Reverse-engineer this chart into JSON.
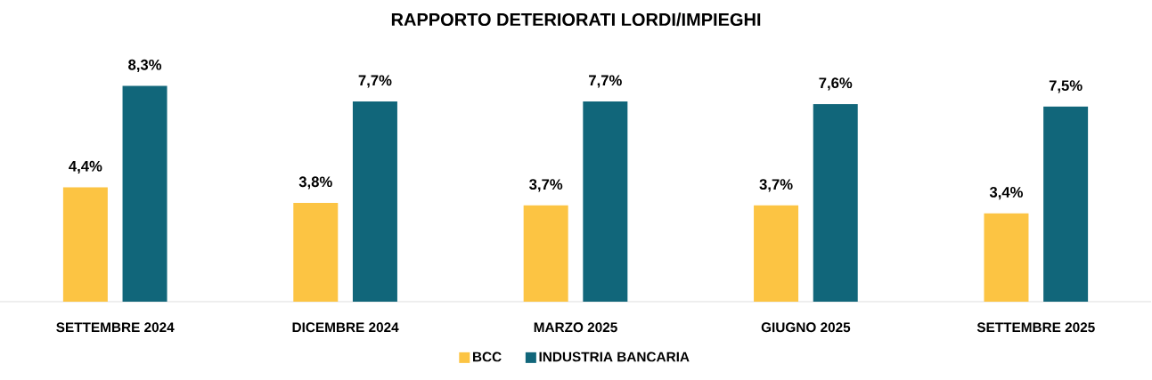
{
  "chart_data": {
    "type": "bar",
    "title": "RAPPORTO DETERIORATI LORDI/IMPIEGHI",
    "categories": [
      "SETTEMBRE 2024",
      "DICEMBRE 2024",
      "MARZO 2025",
      "GIUGNO 2025",
      "SETTEMBRE 2025"
    ],
    "series": [
      {
        "name": "BCC",
        "color": "#fcc443",
        "values": [
          4.4,
          3.8,
          3.7,
          3.7,
          3.4
        ],
        "value_labels": [
          "4,4%",
          "3,8%",
          "3,7%",
          "3,7%",
          "3,4%"
        ]
      },
      {
        "name": "INDUSTRIA BANCARIA",
        "color": "#11667a",
        "values": [
          8.3,
          7.7,
          7.7,
          7.6,
          7.5
        ],
        "value_labels": [
          "8,3%",
          "7,7%",
          "7,7%",
          "7,6%",
          "7,5%"
        ]
      }
    ],
    "legend": "bottom"
  }
}
